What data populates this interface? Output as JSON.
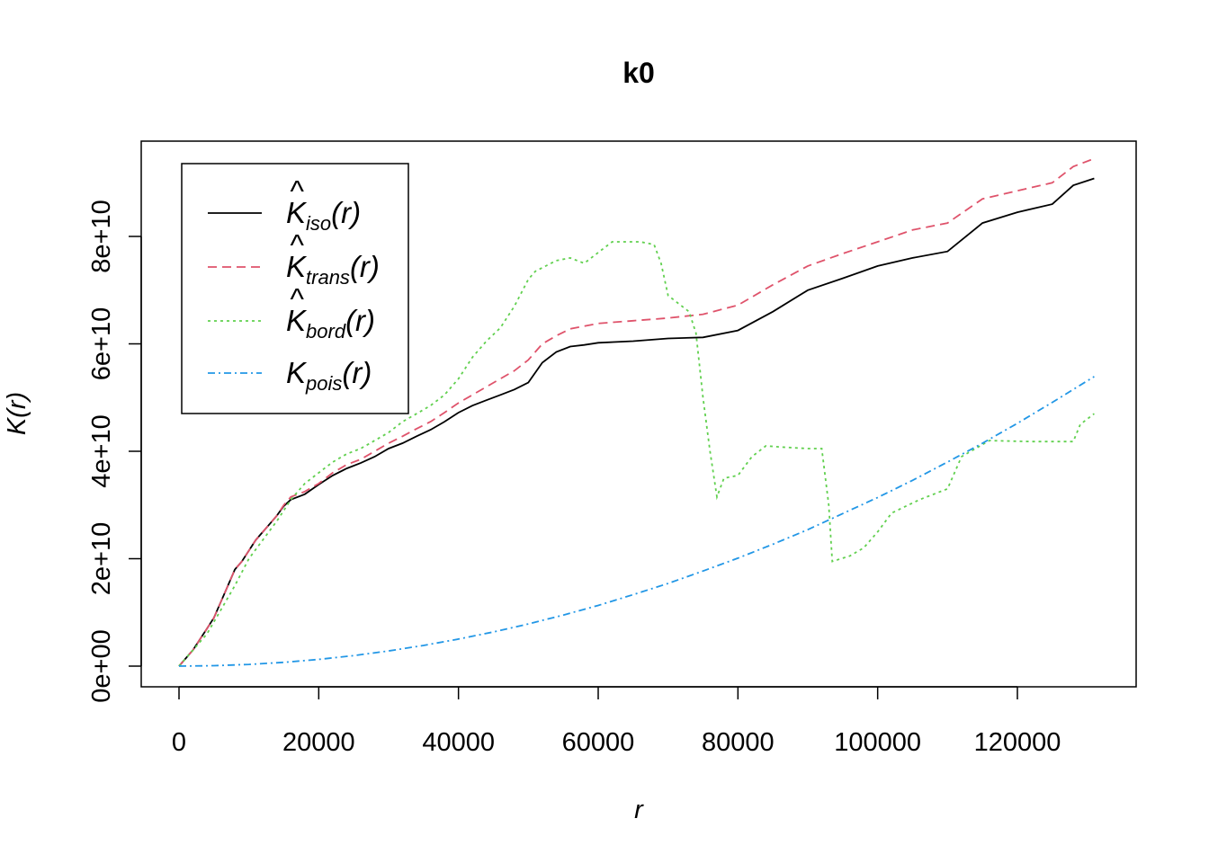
{
  "chart_data": {
    "type": "line",
    "title": "k0",
    "xlabel": "r",
    "ylabel": "K(r)",
    "xlim": [
      0,
      131000
    ],
    "ylim": [
      0,
      94000000000.0
    ],
    "xticks": [
      0,
      20000,
      40000,
      60000,
      80000,
      100000,
      120000
    ],
    "xtick_labels": [
      "0",
      "20000",
      "40000",
      "60000",
      "80000",
      "100000",
      "120000"
    ],
    "yticks": [
      0,
      20000000000.0,
      40000000000.0,
      60000000000.0,
      80000000000.0
    ],
    "ytick_labels": [
      "0e+00",
      "2e+10",
      "4e+10",
      "6e+10",
      "8e+10"
    ],
    "grid": false,
    "legend_position": "top-left",
    "series": [
      {
        "name": "iso",
        "legend_main": "K",
        "legend_sub": "iso",
        "legend_suffix": "(r)",
        "color": "#000000",
        "dash": "none",
        "x": [
          0,
          1000,
          2000,
          3000,
          4000,
          5000,
          6000,
          7000,
          8000,
          9000,
          10000,
          11000,
          12000,
          13000,
          14000,
          15000,
          16000,
          18000,
          20000,
          22000,
          24000,
          26000,
          28000,
          30000,
          32000,
          34000,
          36000,
          38000,
          40000,
          42000,
          44000,
          46000,
          48000,
          50000,
          52000,
          54000,
          56000,
          58000,
          60000,
          65000,
          70000,
          75000,
          80000,
          85000,
          90000,
          95000,
          100000,
          105000,
          110000,
          115000,
          120000,
          125000,
          128000,
          131000
        ],
        "y": [
          0,
          1500000000.0,
          3000000000.0,
          5000000000.0,
          7000000000.0,
          9000000000.0,
          12000000000.0,
          15000000000.0,
          18000000000.0,
          19500000000.0,
          21500000000.0,
          23500000000.0,
          25000000000.0,
          26500000000.0,
          28000000000.0,
          29800000000.0,
          31000000000.0,
          32000000000.0,
          33800000000.0,
          35500000000.0,
          36800000000.0,
          37800000000.0,
          39000000000.0,
          40500000000.0,
          41500000000.0,
          42800000000.0,
          44000000000.0,
          45500000000.0,
          47200000000.0,
          48500000000.0,
          49500000000.0,
          50500000000.0,
          51500000000.0,
          52800000000.0,
          56500000000.0,
          58500000000.0,
          59500000000.0,
          59800000000.0,
          60200000000.0,
          60500000000.0,
          61000000000.0,
          61200000000.0,
          62500000000.0,
          66000000000.0,
          70000000000.0,
          72200000000.0,
          74500000000.0,
          76000000000.0,
          77200000000.0,
          82500000000.0,
          84500000000.0,
          86000000000.0,
          89500000000.0,
          90800000000.0
        ]
      },
      {
        "name": "trans",
        "legend_main": "K",
        "legend_sub": "trans",
        "legend_suffix": "(r)",
        "color": "#DF536B",
        "dash": "10,6",
        "x": [
          0,
          1000,
          2000,
          3000,
          4000,
          5000,
          6000,
          7000,
          8000,
          9000,
          10000,
          11000,
          12000,
          13000,
          14000,
          15000,
          16000,
          18000,
          20000,
          22000,
          24000,
          26000,
          28000,
          30000,
          32000,
          34000,
          36000,
          38000,
          40000,
          42000,
          44000,
          46000,
          48000,
          50000,
          52000,
          54000,
          56000,
          58000,
          60000,
          65000,
          70000,
          75000,
          80000,
          85000,
          90000,
          95000,
          100000,
          105000,
          110000,
          115000,
          120000,
          125000,
          128000,
          131000
        ],
        "y": [
          0,
          1500000000.0,
          3000000000.0,
          5000000000.0,
          7000000000.0,
          9000000000.0,
          12000000000.0,
          15000000000.0,
          18000000000.0,
          19500000000.0,
          21500000000.0,
          23500000000.0,
          25000000000.0,
          26500000000.0,
          28000000000.0,
          30000000000.0,
          31500000000.0,
          32500000000.0,
          34000000000.0,
          36000000000.0,
          37500000000.0,
          38500000000.0,
          40000000000.0,
          41500000000.0,
          42800000000.0,
          44200000000.0,
          45500000000.0,
          47200000000.0,
          49000000000.0,
          50500000000.0,
          52000000000.0,
          53500000000.0,
          55000000000.0,
          57000000000.0,
          60000000000.0,
          61500000000.0,
          62800000000.0,
          63300000000.0,
          63800000000.0,
          64300000000.0,
          64800000000.0,
          65500000000.0,
          67200000000.0,
          71000000000.0,
          74500000000.0,
          76800000000.0,
          79000000000.0,
          81200000000.0,
          82500000000.0,
          87000000000.0,
          88500000000.0,
          90000000000.0,
          93000000000.0,
          94500000000.0
        ]
      },
      {
        "name": "bord",
        "legend_main": "K",
        "legend_sub": "bord",
        "legend_suffix": "(r)",
        "color": "#61D04F",
        "dash": "3,4",
        "x": [
          0,
          2000,
          4000,
          6000,
          8000,
          10000,
          12000,
          14000,
          16000,
          18000,
          20000,
          22000,
          24000,
          26000,
          28000,
          30000,
          32000,
          34000,
          36000,
          38000,
          40000,
          42000,
          44000,
          46000,
          48000,
          50000,
          51000,
          54000,
          56000,
          58000,
          60000,
          62000,
          64000,
          66000,
          68000,
          69000,
          70000,
          72000,
          73000,
          74000,
          75000,
          76000,
          77000,
          78000,
          80000,
          82000,
          84000,
          86000,
          90000,
          92000,
          93000,
          93500,
          96000,
          98000,
          100000,
          102000,
          106000,
          110000,
          112000,
          116000,
          122000,
          126000,
          128000,
          129000,
          131000
        ],
        "y": [
          0,
          3000000000.0,
          6000000000.0,
          10500000000.0,
          15000000000.0,
          20000000000.0,
          23500000000.0,
          27000000000.0,
          31000000000.0,
          34000000000.0,
          36000000000.0,
          38000000000.0,
          39500000000.0,
          40500000000.0,
          42000000000.0,
          43500000000.0,
          45500000000.0,
          47000000000.0,
          48500000000.0,
          50500000000.0,
          53500000000.0,
          57500000000.0,
          60500000000.0,
          63000000000.0,
          67000000000.0,
          72000000000.0,
          73500000000.0,
          75500000000.0,
          76000000000.0,
          75000000000.0,
          77000000000.0,
          79000000000.0,
          79000000000.0,
          79000000000.0,
          78500000000.0,
          75000000000.0,
          69000000000.0,
          67000000000.0,
          66000000000.0,
          62000000000.0,
          50000000000.0,
          40000000000.0,
          31500000000.0,
          35000000000.0,
          35500000000.0,
          39000000000.0,
          41000000000.0,
          40800000000.0,
          40500000000.0,
          40500000000.0,
          30000000000.0,
          19500000000.0,
          20500000000.0,
          22000000000.0,
          25000000000.0,
          28500000000.0,
          31000000000.0,
          33000000000.0,
          39000000000.0,
          42000000000.0,
          41800000000.0,
          41800000000.0,
          41800000000.0,
          45000000000.0,
          47000000000.0
        ]
      },
      {
        "name": "pois",
        "legend_main": "K",
        "legend_sub": "pois",
        "legend_suffix": "(r)",
        "color": "#2297E6",
        "dash": "8,4,2,4",
        "x": [
          0,
          5000,
          10000,
          15000,
          20000,
          25000,
          30000,
          35000,
          40000,
          45000,
          50000,
          55000,
          60000,
          65000,
          70000,
          75000,
          80000,
          85000,
          90000,
          95000,
          100000,
          105000,
          110000,
          115000,
          120000,
          125000,
          131000
        ],
        "y": [
          0,
          78500000.0,
          314000000.0,
          707000000.0,
          1260000000.0,
          1960000000.0,
          2830000000.0,
          3850000000.0,
          5030000000.0,
          6360000000.0,
          7850000000.0,
          9500000000.0,
          11300000000.0,
          13300000000.0,
          15400000000.0,
          17700000000.0,
          20100000000.0,
          22700000000.0,
          25400000000.0,
          28400000000.0,
          31400000000.0,
          34600000000.0,
          38000000000.0,
          41500000000.0,
          45200000000.0,
          49100000000.0,
          53900000000.0
        ]
      }
    ]
  }
}
